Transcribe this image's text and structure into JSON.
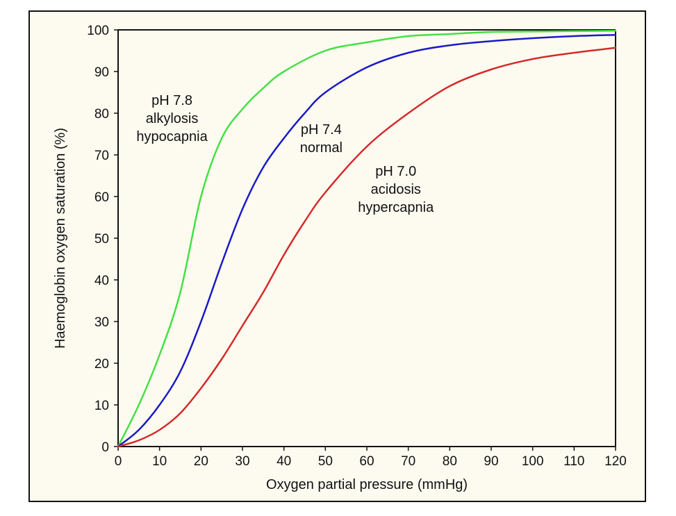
{
  "chart_data": {
    "type": "line",
    "xlabel": "Oxygen partial pressure (mmHg)",
    "ylabel": "Haemoglobin oxygen saturation (%)",
    "xlim": [
      0,
      120
    ],
    "ylim": [
      0,
      100
    ],
    "xticks": [
      0,
      10,
      20,
      30,
      40,
      50,
      60,
      70,
      80,
      90,
      100,
      110,
      120
    ],
    "yticks": [
      0,
      10,
      20,
      30,
      40,
      50,
      60,
      70,
      80,
      90,
      100
    ],
    "grid": false,
    "legend": "none",
    "series": [
      {
        "color": "#44e044",
        "x": [
          0,
          5,
          10,
          15,
          20,
          25,
          30,
          35,
          40,
          50,
          60,
          70,
          80,
          90,
          100,
          110,
          120
        ],
        "y": [
          0,
          10,
          22,
          37,
          60,
          74,
          81,
          86,
          90,
          95,
          97,
          98.5,
          99,
          99.5,
          99.6,
          99.7,
          99.8
        ]
      },
      {
        "color": "#1a1ac8",
        "x": [
          0,
          5,
          10,
          15,
          20,
          25,
          30,
          35,
          40,
          45,
          50,
          60,
          70,
          80,
          90,
          100,
          110,
          120
        ],
        "y": [
          0,
          4,
          10,
          18,
          30,
          44,
          57,
          67,
          74,
          80,
          85,
          91,
          94.5,
          96.3,
          97.3,
          98,
          98.5,
          98.8
        ]
      },
      {
        "color": "#d42a2a",
        "x": [
          0,
          5,
          10,
          15,
          20,
          25,
          30,
          35,
          40,
          45,
          50,
          60,
          70,
          80,
          90,
          100,
          110,
          120
        ],
        "y": [
          0,
          1.5,
          4,
          8,
          14,
          21,
          29,
          37,
          46,
          54,
          61,
          72,
          80,
          86.5,
          90.5,
          93,
          94.5,
          95.7
        ]
      }
    ],
    "annotations": [
      {
        "lines": [
          "pH 7.8",
          "alkylosis",
          "hypocapnia"
        ],
        "x": 13,
        "y": 82
      },
      {
        "lines": [
          "pH 7.4",
          "normal"
        ],
        "x": 49,
        "y": 75
      },
      {
        "lines": [
          "pH 7.0",
          "acidosis",
          "hypercapnia"
        ],
        "x": 67,
        "y": 65
      }
    ]
  }
}
